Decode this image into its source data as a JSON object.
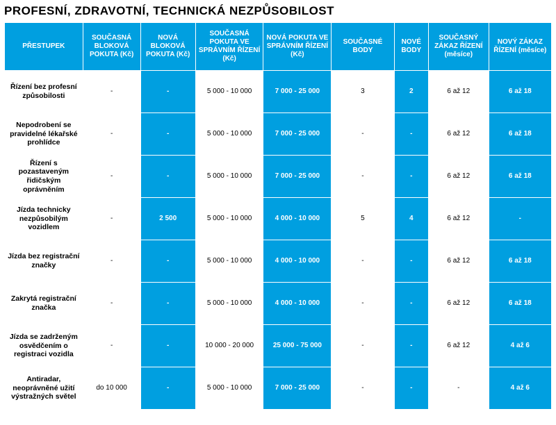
{
  "title": "PROFESNÍ, ZDRAVOTNÍ, TECHNICKÁ NEZPŮSOBILOST",
  "colors": {
    "blue": "#009fe0",
    "white": "#ffffff",
    "text_black": "#000000"
  },
  "headers": [
    "PŘESTUPEK",
    "SOUČASNÁ BLOKOVÁ POKUTA (Kč)",
    "NOVÁ BLOKOVÁ POKUTA (Kč)",
    "SOUČASNÁ POKUTA VE SPRÁVNÍM ŘÍZENÍ (Kč)",
    "NOVÁ POKUTA VE SPRÁVNÍM ŘÍZENÍ (Kč)",
    "SOUČASNÉ BODY",
    "NOVÉ BODY",
    "SOUČASNÝ ZÁKAZ ŘÍZENÍ (měsíce)",
    "NOVÝ ZÁKAZ ŘÍZENÍ (měsíce)"
  ],
  "column_styles": [
    "label",
    "white",
    "blue",
    "white",
    "blue",
    "white",
    "blue",
    "white",
    "blue"
  ],
  "rows": [
    {
      "label": "Řízení bez profesní způsobilosti",
      "cells": [
        "-",
        "-",
        "5 000 - 10 000",
        "7 000 - 25 000",
        "3",
        "2",
        "6 až 12",
        "6 až 18"
      ]
    },
    {
      "label": "Nepodrobení se pravidelné lékařské prohlídce",
      "cells": [
        "-",
        "-",
        "5 000 - 10 000",
        "7 000 - 25 000",
        "-",
        "-",
        "6 až 12",
        "6 až 18"
      ]
    },
    {
      "label": "Řízení s pozastaveným řidičským oprávněním",
      "cells": [
        "-",
        "-",
        "5 000 - 10 000",
        "7 000 - 25 000",
        "-",
        "-",
        "6 až 12",
        "6 až 18"
      ]
    },
    {
      "label": "Jízda technicky nezpůsobilým vozidlem",
      "cells": [
        "-",
        "2 500",
        "5 000 - 10 000",
        "4 000 - 10 000",
        "5",
        "4",
        "6 až 12",
        "-"
      ]
    },
    {
      "label": "Jízda bez registrační značky",
      "cells": [
        "-",
        "-",
        "5 000 - 10 000",
        "4 000 - 10 000",
        "-",
        "-",
        "6 až 12",
        "6 až 18"
      ]
    },
    {
      "label": "Zakrytá registrační značka",
      "cells": [
        "-",
        "-",
        "5 000 - 10 000",
        "4 000 - 10 000",
        "-",
        "-",
        "6 až 12",
        "6 až 18"
      ]
    },
    {
      "label": "Jízda se zadrženým osvědčením o registraci vozidla",
      "cells": [
        "-",
        "-",
        "10 000 - 20 000",
        "25 000 - 75 000",
        "-",
        "-",
        "6 až 12",
        "4 až 6"
      ]
    },
    {
      "label": "Antiradar, neoprávněné užití výstražných světel",
      "cells": [
        "do 10 000",
        "-",
        "5 000 - 10 000",
        "7 000 - 25 000",
        "-",
        "-",
        "-",
        "4 až 6"
      ]
    }
  ]
}
